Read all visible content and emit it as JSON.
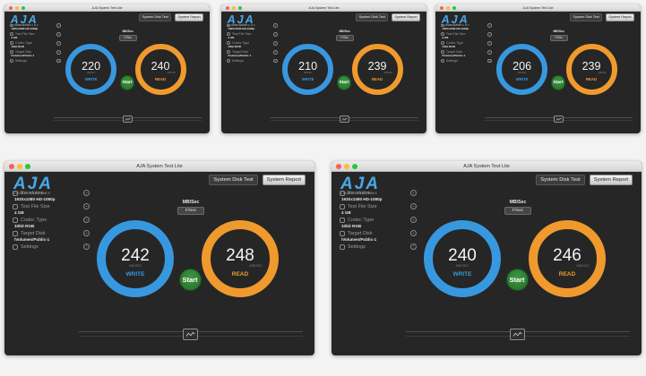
{
  "app": {
    "window_title": "AJA System Test Lite",
    "logo_text": "AJA",
    "logo_subtitle": "VIDEO SYSTEMS",
    "disk_test_label": "System Disk Test",
    "report_label": "System Report"
  },
  "sidebar": {
    "resolution_label": "Resolution",
    "resolution_value": "1920x1080 HD-1080p",
    "file_size_label": "Test File Size",
    "file_size_value": "4 GB",
    "codec_label": "Codec Type",
    "codec_value": "10bit RGB",
    "disk_label": "Target Disk",
    "disk_value": "/Volumes/Public-1",
    "settings_label": "Settings"
  },
  "units": {
    "label": "MB/Sec",
    "button": "F/Sec",
    "per_dial": "MB/SEC"
  },
  "dials": {
    "write_label": "WRITE",
    "read_label": "READ"
  },
  "start_label": "Start",
  "colors": {
    "write": "#3898df",
    "read": "#f09a2e",
    "start": "#2f7d35",
    "logo": "#4aa8e8"
  },
  "icons": [
    "resolution-icon",
    "file-size-icon",
    "codec-icon",
    "target-disk-icon",
    "settings-icon",
    "chevron-down-icon",
    "chevron-right-icon",
    "graph-icon"
  ],
  "windows": [
    {
      "write_value": "220",
      "read_value": "240"
    },
    {
      "write_value": "210",
      "read_value": "239"
    },
    {
      "write_value": "206",
      "read_value": "239"
    },
    {
      "write_value": "242",
      "read_value": "248"
    },
    {
      "write_value": "240",
      "read_value": "246"
    }
  ]
}
